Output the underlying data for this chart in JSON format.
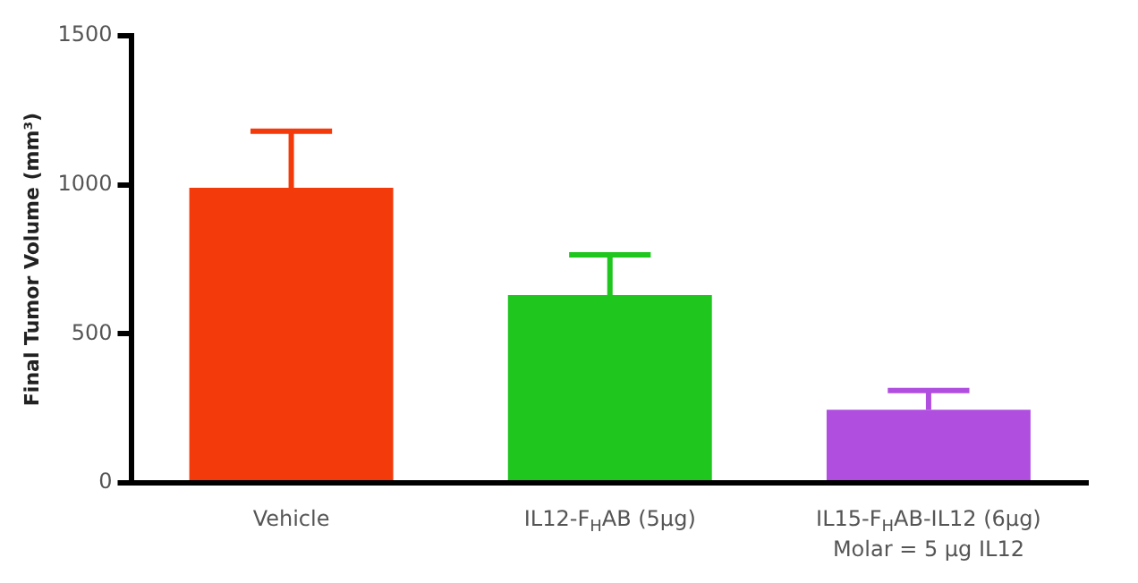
{
  "chart_data": {
    "type": "bar",
    "ylabel": "Final Tumor Volume (mm³)",
    "categories": [
      "Vehicle",
      "IL12-F$_{H}$AB (5µg)",
      "IL15-F$_{H}$AB-IL12 (6µg)\nMolar = 5 µg IL12"
    ],
    "values": [
      990,
      630,
      245
    ],
    "colors": [
      "#f23a0a",
      "#1ec61e",
      "#b04ee0"
    ],
    "errors": [
      [
        990,
        1180
      ],
      [
        630,
        765
      ],
      [
        245,
        310
      ]
    ],
    "ylim": [
      0,
      1500
    ],
    "yticks": [
      0,
      500,
      1000,
      1500
    ],
    "grid": false,
    "legend": false
  }
}
